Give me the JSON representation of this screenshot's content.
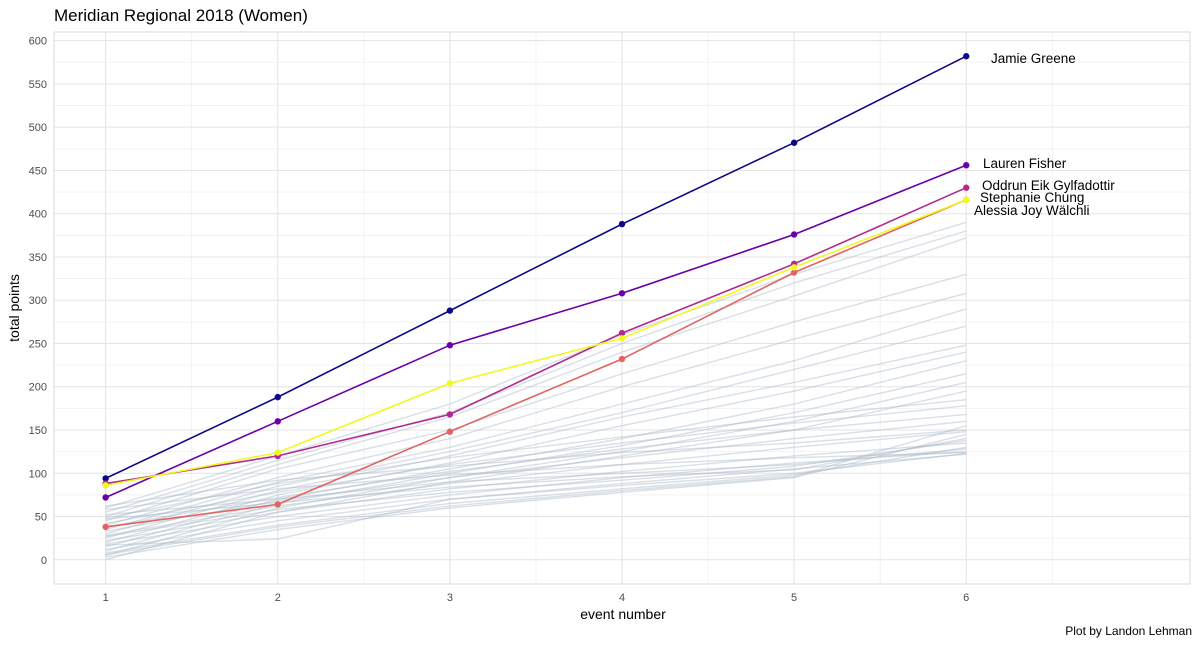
{
  "chart_data": {
    "type": "line",
    "title": "Meridian Regional 2018 (Women)",
    "xlabel": "event number",
    "ylabel": "total points",
    "caption": "Plot by Landon Lehman",
    "x": [
      1,
      2,
      3,
      4,
      5,
      6
    ],
    "x_ticks": [
      "1",
      "2",
      "3",
      "4",
      "5",
      "6"
    ],
    "xlim": [
      0.7,
      7.3
    ],
    "ylim": [
      -28,
      610
    ],
    "y_ticks": [
      0,
      50,
      100,
      150,
      200,
      250,
      300,
      350,
      400,
      450,
      500,
      550,
      600
    ],
    "grid": true,
    "legend": "none",
    "background_series_color": "#a9b7c8",
    "series": [
      {
        "name": "Jamie Greene",
        "color": "#0d0887",
        "values": [
          94,
          188,
          288,
          388,
          482,
          582
        ]
      },
      {
        "name": "Lauren Fisher",
        "color": "#6a00a8",
        "values": [
          72,
          160,
          248,
          308,
          376,
          456
        ]
      },
      {
        "name": "Oddrun Eik Gylfadottir",
        "color": "#b12a90",
        "values": [
          88,
          120,
          168,
          262,
          342,
          430
        ]
      },
      {
        "name": "Stephanie Chung",
        "color": "#e16462",
        "values": [
          38,
          64,
          148,
          232,
          332,
          416
        ]
      },
      {
        "name": "Alessia Joy Wälchli",
        "color": "#f0f921",
        "values": [
          86,
          124,
          204,
          256,
          338,
          416
        ]
      }
    ],
    "field_series": [
      [
        60,
        120,
        180,
        260,
        330,
        390
      ],
      [
        55,
        115,
        170,
        250,
        320,
        380
      ],
      [
        50,
        110,
        165,
        240,
        305,
        372
      ],
      [
        45,
        105,
        150,
        215,
        275,
        330
      ],
      [
        40,
        95,
        140,
        200,
        255,
        308
      ],
      [
        35,
        90,
        130,
        180,
        230,
        290
      ],
      [
        30,
        85,
        125,
        170,
        220,
        270
      ],
      [
        25,
        80,
        120,
        165,
        205,
        248
      ],
      [
        20,
        75,
        112,
        155,
        195,
        240
      ],
      [
        15,
        70,
        105,
        140,
        180,
        230
      ],
      [
        10,
        65,
        100,
        132,
        170,
        215
      ],
      [
        5,
        60,
        95,
        125,
        160,
        205
      ],
      [
        0,
        55,
        90,
        120,
        150,
        195
      ],
      [
        48,
        88,
        118,
        142,
        165,
        185
      ],
      [
        42,
        78,
        110,
        135,
        158,
        178
      ],
      [
        38,
        72,
        102,
        128,
        150,
        168
      ],
      [
        33,
        68,
        95,
        118,
        140,
        160
      ],
      [
        28,
        62,
        88,
        110,
        130,
        148
      ],
      [
        22,
        55,
        82,
        102,
        120,
        135
      ],
      [
        18,
        50,
        75,
        95,
        112,
        125
      ],
      [
        12,
        45,
        70,
        88,
        105,
        122
      ],
      [
        8,
        40,
        65,
        82,
        98,
        130
      ],
      [
        3,
        35,
        60,
        78,
        95,
        145
      ],
      [
        58,
        82,
        98,
        110,
        118,
        124
      ],
      [
        52,
        70,
        90,
        100,
        110,
        128
      ],
      [
        47,
        66,
        84,
        96,
        104,
        140
      ],
      [
        62,
        92,
        108,
        124,
        135,
        150
      ],
      [
        27,
        58,
        78,
        92,
        108,
        138
      ],
      [
        17,
        24,
        70,
        86,
        100,
        123
      ],
      [
        6,
        38,
        62,
        80,
        96,
        155
      ]
    ]
  }
}
